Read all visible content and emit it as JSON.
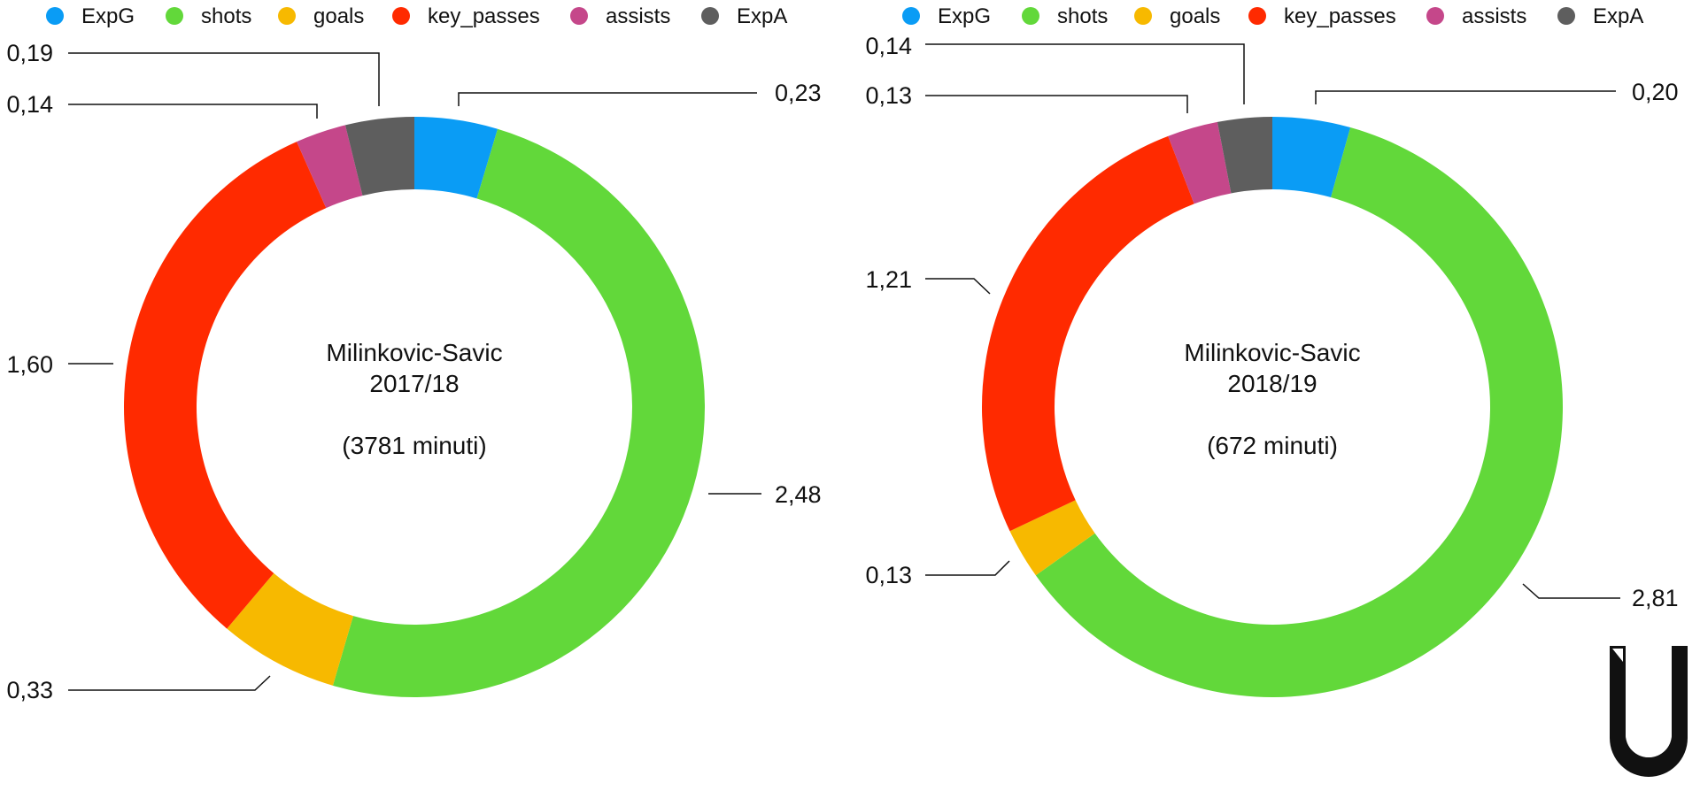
{
  "colors": {
    "ExpG": "#0a9cf5",
    "shots": "#62d83a",
    "goals": "#f7b900",
    "key_passes": "#ff2a00",
    "assists": "#c5478a",
    "ExpA": "#5e5e5e"
  },
  "legend": [
    "ExpG",
    "shots",
    "goals",
    "key_passes",
    "assists",
    "ExpA"
  ],
  "chart_data": [
    {
      "type": "pie",
      "style": "donut",
      "center_lines": [
        "Milinkovic-Savic",
        "2017/18",
        "",
        "(3781 minuti)"
      ],
      "categories": [
        "ExpG",
        "shots",
        "goals",
        "key_passes",
        "assists",
        "ExpA"
      ],
      "values": [
        0.23,
        2.48,
        0.33,
        1.6,
        0.14,
        0.19
      ],
      "labels": [
        "0,23",
        "2,48",
        "0,33",
        "1,60",
        "0,14",
        "0,19"
      ],
      "legend_position": "top"
    },
    {
      "type": "pie",
      "style": "donut",
      "center_lines": [
        "Milinkovic-Savic",
        "2018/19",
        "",
        "(672 minuti)"
      ],
      "categories": [
        "ExpG",
        "shots",
        "goals",
        "key_passes",
        "assists",
        "ExpA"
      ],
      "values": [
        0.2,
        2.81,
        0.13,
        1.21,
        0.13,
        0.14
      ],
      "labels": [
        "0,20",
        "2,81",
        "0,13",
        "1,21",
        "0,13",
        "0,14"
      ],
      "legend_position": "top"
    }
  ],
  "logo": "U"
}
